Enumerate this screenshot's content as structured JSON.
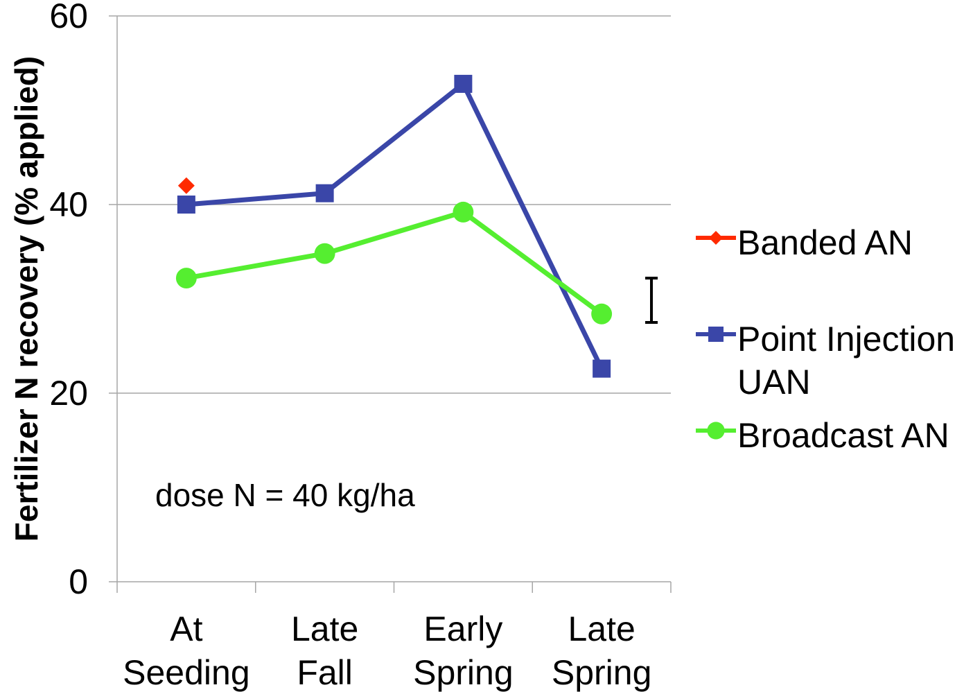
{
  "chart_data": {
    "type": "line",
    "title": "",
    "xlabel": "",
    "ylabel": "Fertilizer N recovery (% applied)",
    "ylim": [
      0,
      60
    ],
    "yticks": [
      0,
      20,
      40,
      60
    ],
    "categories": [
      [
        "At",
        "Seeding"
      ],
      [
        "Late",
        "Fall"
      ],
      [
        "Early",
        "Spring"
      ],
      [
        "Late",
        "Spring"
      ]
    ],
    "grid": true,
    "legend_position": "right",
    "series": [
      {
        "name": "Banded AN",
        "lines": [
          "Banded AN"
        ],
        "color": "#ff2a00",
        "marker": "diamond",
        "values": [
          42,
          null,
          null,
          null
        ]
      },
      {
        "name": "Point Injection UAN",
        "lines": [
          "Point Injection",
          "UAN"
        ],
        "color": "#3a46a8",
        "marker": "square",
        "values": [
          40,
          41.2,
          52.8,
          22.6
        ]
      },
      {
        "name": "Broadcast AN",
        "lines": [
          "Broadcast AN"
        ],
        "color": "#55ee30",
        "marker": "circle",
        "values": [
          32.2,
          34.8,
          39.2,
          28.4
        ]
      }
    ],
    "error_bar": {
      "low": 27.5,
      "high": 32.2
    },
    "annotation": "dose N = 40 kg/ha"
  }
}
